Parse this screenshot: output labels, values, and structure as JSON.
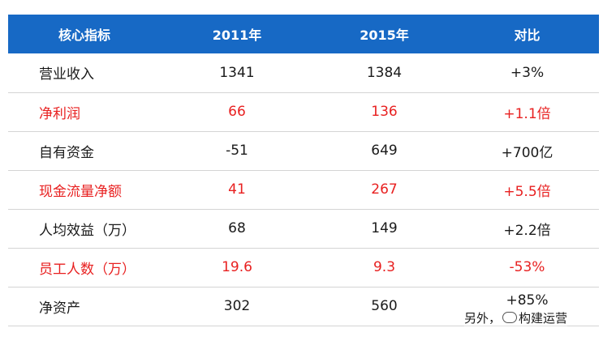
{
  "table": {
    "headers": [
      "核心指标",
      "2011年",
      "2015年",
      "对比"
    ],
    "rows": [
      {
        "name": "营业收入",
        "y2011": "1341",
        "y2015": "1384",
        "compare": "+3%"
      },
      {
        "name": "净利润",
        "y2011": "66",
        "y2015": "136",
        "compare": "+1.1倍"
      },
      {
        "name": "自有资金",
        "y2011": "-51",
        "y2015": "649",
        "compare": "+700亿"
      },
      {
        "name": "现金流量净额",
        "y2011": "41",
        "y2015": "267",
        "compare": "+5.5倍"
      },
      {
        "name": "人均效益（万）",
        "y2011": "68",
        "y2015": "149",
        "compare": "+2.2倍"
      },
      {
        "name": "员工人数（万）",
        "y2011": "19.6",
        "y2015": "9.3",
        "compare": "-53%"
      },
      {
        "name": "净资产",
        "y2011": "302",
        "y2015": "560",
        "compare": "+85%"
      }
    ]
  },
  "overlay": {
    "prefix": "另外，",
    "watermark": "构建运营"
  },
  "colors": {
    "header_bg": "#1769c5",
    "highlight_text": "#e82020"
  }
}
